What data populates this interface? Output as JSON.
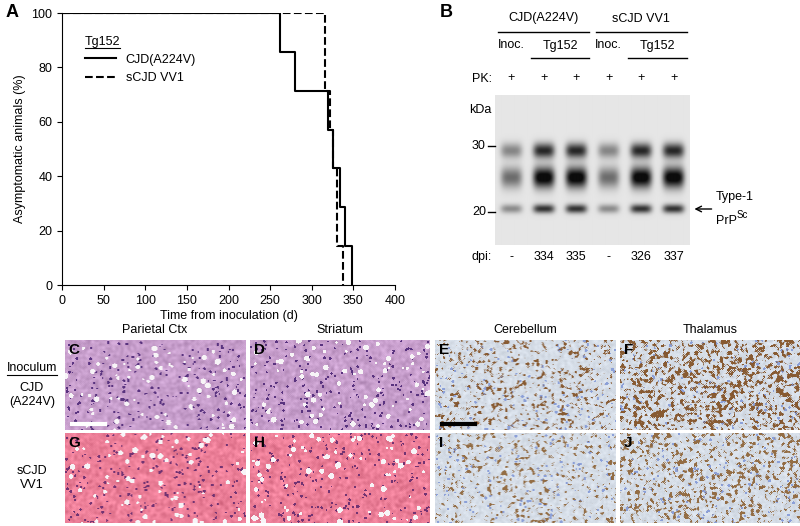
{
  "chart_data": {
    "type": "step",
    "xlabel": "Time from inoculation (d)",
    "ylabel": "Asymptomatic animals (%)",
    "xlim": [
      0,
      400
    ],
    "xticks": [
      0,
      50,
      100,
      150,
      200,
      250,
      300,
      350,
      400
    ],
    "ylim": [
      0,
      100
    ],
    "yticks": [
      0,
      20,
      40,
      60,
      80,
      100
    ],
    "legend": "upper left",
    "legend_title": "Tg152",
    "series": [
      {
        "name": "CJD(A224V)",
        "color": "#000000",
        "line_style": "solid",
        "x": [
          0,
          262,
          280,
          320,
          326,
          334,
          340,
          348
        ],
        "values": [
          100,
          85.7,
          71.4,
          57.1,
          42.9,
          28.6,
          14.3,
          0
        ]
      },
      {
        "name": "sCJD VV1",
        "color": "#000000",
        "line_style": "dashed",
        "x": [
          0,
          316,
          322,
          326,
          330,
          337
        ],
        "values": [
          100,
          71.4,
          57.1,
          42.9,
          14.3,
          0
        ]
      }
    ]
  },
  "panel_labels": [
    "A",
    "B",
    "C",
    "D",
    "E",
    "F",
    "G",
    "H",
    "I",
    "J"
  ],
  "western_blot": {
    "groups": [
      {
        "name": "CJD(A224V)",
        "subgroups": [
          {
            "name": "Inoc.",
            "lanes": [
              {
                "pk": "+",
                "dpi": "-"
              }
            ]
          },
          {
            "name": "Tg152",
            "lanes": [
              {
                "pk": "+",
                "dpi": "334"
              },
              {
                "pk": "+",
                "dpi": "335"
              }
            ]
          }
        ]
      },
      {
        "name": "sCJD VV1",
        "subgroups": [
          {
            "name": "Inoc.",
            "lanes": [
              {
                "pk": "+",
                "dpi": "-"
              }
            ]
          },
          {
            "name": "Tg152",
            "lanes": [
              {
                "pk": "+",
                "dpi": "326"
              },
              {
                "pk": "+",
                "dpi": "337"
              }
            ]
          }
        ]
      }
    ],
    "pk_label": "PK:",
    "dpi_label": "dpi:",
    "marker_unit": "kDa",
    "markers": [
      30,
      20
    ],
    "band_label": {
      "text": "Type-1",
      "name": "PrP",
      "superscript": "Sc"
    }
  },
  "histology": {
    "columns": [
      "Parietal Ctx",
      "Striatum",
      "Cerebellum",
      "Thalamus"
    ],
    "row_header": "Inoculum",
    "rows": [
      "CJD\n(A224V)",
      "sCJD\nVV1"
    ]
  }
}
